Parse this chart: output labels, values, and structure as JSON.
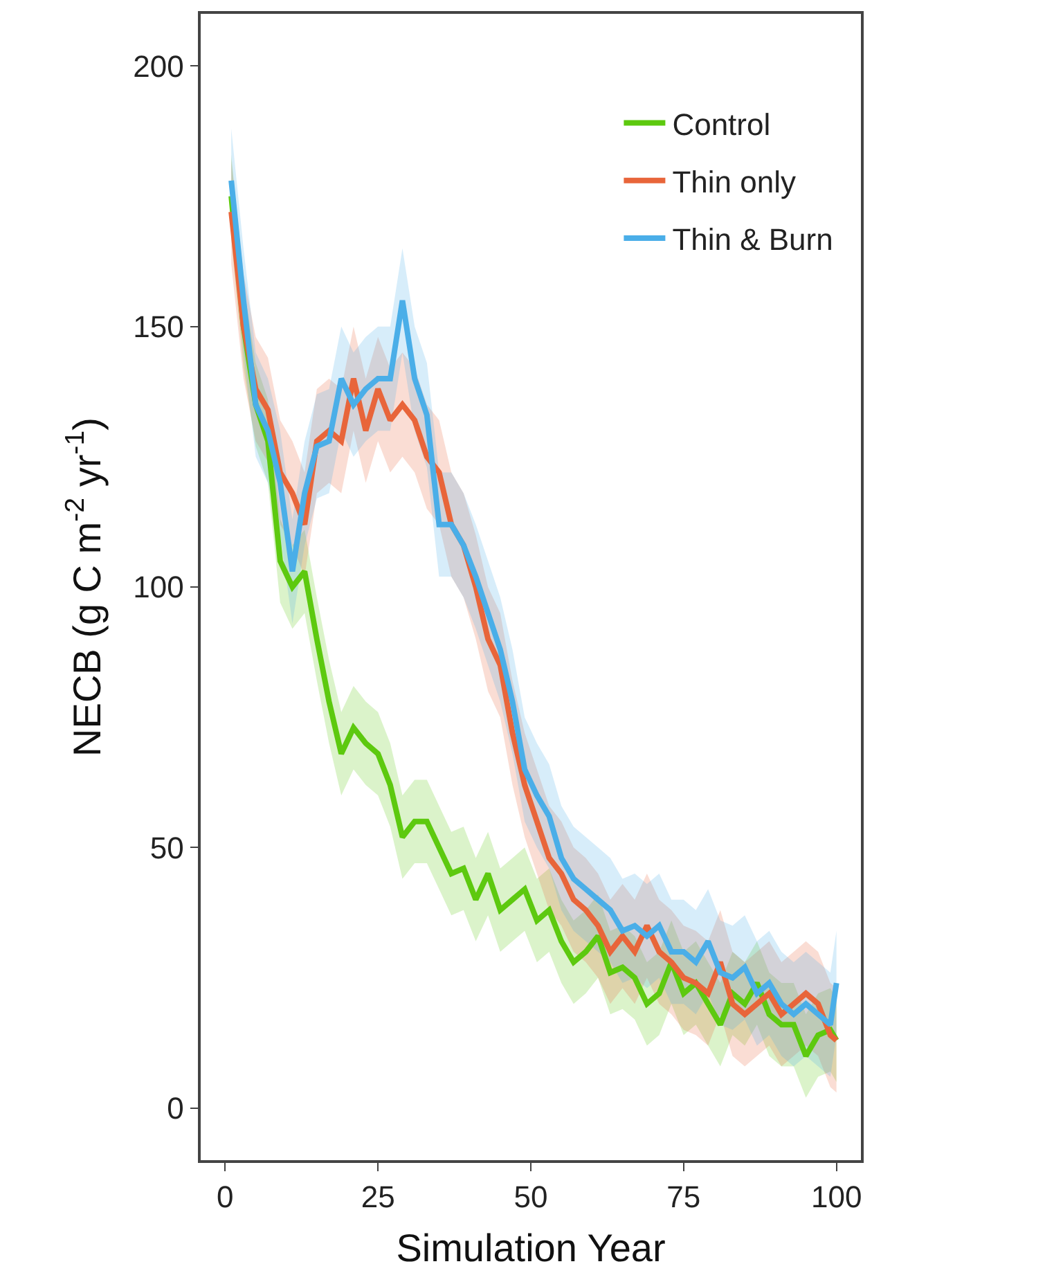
{
  "chart_data": {
    "type": "line",
    "xlabel": "Simulation Year",
    "ylabel": "NECB (g C m$^{-2}$ yr$^{-1}$)",
    "x": [
      1,
      3,
      5,
      7,
      9,
      11,
      13,
      15,
      17,
      19,
      21,
      23,
      25,
      27,
      29,
      31,
      33,
      35,
      37,
      39,
      41,
      43,
      45,
      47,
      49,
      51,
      53,
      55,
      57,
      59,
      61,
      63,
      65,
      67,
      69,
      71,
      73,
      75,
      77,
      79,
      81,
      83,
      85,
      87,
      89,
      91,
      93,
      95,
      97,
      99,
      100
    ],
    "xlim": [
      -4,
      104
    ],
    "ylim": [
      -10,
      210
    ],
    "xticks": [
      0,
      25,
      50,
      75,
      100
    ],
    "yticks": [
      0,
      50,
      100,
      150,
      200
    ],
    "legend": "top right",
    "marker": "none",
    "line_style": "solid",
    "series": [
      {
        "name": "Control",
        "color": "#5dc90f",
        "values": [
          175,
          150,
          135,
          128,
          105,
          100,
          103,
          90,
          78,
          68,
          73,
          70,
          68,
          62,
          52,
          55,
          55,
          50,
          45,
          46,
          40,
          45,
          38,
          40,
          42,
          36,
          38,
          32,
          28,
          30,
          33,
          26,
          27,
          25,
          20,
          22,
          28,
          22,
          24,
          20,
          16,
          22,
          20,
          24,
          18,
          16,
          16,
          10,
          14,
          15,
          13
        ],
        "lower": [
          167,
          142,
          127,
          120,
          97,
          92,
          95,
          82,
          70,
          60,
          65,
          62,
          60,
          54,
          44,
          47,
          47,
          42,
          37,
          38,
          32,
          37,
          30,
          32,
          34,
          28,
          30,
          24,
          20,
          22,
          25,
          18,
          19,
          17,
          12,
          14,
          20,
          14,
          16,
          12,
          8,
          14,
          12,
          16,
          10,
          8,
          8,
          2,
          6,
          7,
          5
        ],
        "upper": [
          183,
          158,
          143,
          136,
          113,
          108,
          111,
          98,
          86,
          76,
          81,
          78,
          76,
          70,
          60,
          63,
          63,
          58,
          53,
          54,
          48,
          53,
          46,
          48,
          50,
          44,
          46,
          40,
          36,
          38,
          41,
          34,
          35,
          33,
          28,
          30,
          36,
          30,
          32,
          28,
          24,
          30,
          28,
          32,
          26,
          24,
          24,
          18,
          22,
          23,
          21
        ]
      },
      {
        "name": "Thin only",
        "color": "#e8653a",
        "values": [
          172,
          150,
          138,
          134,
          122,
          118,
          112,
          128,
          130,
          128,
          140,
          130,
          138,
          132,
          135,
          132,
          125,
          122,
          112,
          108,
          100,
          90,
          85,
          72,
          62,
          55,
          48,
          45,
          40,
          38,
          35,
          30,
          33,
          30,
          35,
          30,
          28,
          25,
          24,
          22,
          28,
          20,
          18,
          20,
          22,
          18,
          20,
          22,
          20,
          14,
          13
        ],
        "lower": [
          162,
          140,
          128,
          124,
          112,
          108,
          102,
          118,
          120,
          118,
          130,
          120,
          128,
          122,
          125,
          122,
          115,
          112,
          102,
          98,
          90,
          80,
          75,
          62,
          52,
          45,
          38,
          35,
          30,
          28,
          25,
          20,
          23,
          20,
          25,
          20,
          18,
          15,
          14,
          12,
          18,
          10,
          8,
          10,
          12,
          8,
          10,
          12,
          10,
          4,
          3
        ],
        "upper": [
          182,
          160,
          148,
          144,
          132,
          128,
          122,
          138,
          140,
          138,
          150,
          140,
          148,
          142,
          145,
          142,
          135,
          132,
          122,
          118,
          110,
          100,
          95,
          82,
          72,
          65,
          58,
          55,
          50,
          48,
          45,
          40,
          43,
          40,
          45,
          40,
          38,
          35,
          34,
          32,
          38,
          30,
          28,
          30,
          32,
          28,
          30,
          32,
          30,
          24,
          23
        ]
      },
      {
        "name": "Thin & Burn",
        "color": "#4aaee8",
        "values": [
          178,
          155,
          135,
          130,
          120,
          103,
          118,
          127,
          128,
          140,
          135,
          138,
          140,
          140,
          155,
          140,
          133,
          112,
          112,
          108,
          102,
          95,
          88,
          78,
          65,
          60,
          56,
          48,
          44,
          42,
          40,
          38,
          34,
          35,
          33,
          35,
          30,
          30,
          28,
          32,
          26,
          25,
          27,
          22,
          24,
          20,
          18,
          20,
          18,
          16,
          24
        ],
        "lower": [
          168,
          145,
          125,
          120,
          110,
          93,
          108,
          117,
          118,
          130,
          125,
          128,
          130,
          130,
          145,
          130,
          123,
          102,
          102,
          98,
          92,
          85,
          78,
          68,
          55,
          50,
          46,
          38,
          34,
          32,
          30,
          28,
          24,
          25,
          23,
          25,
          20,
          20,
          18,
          22,
          16,
          15,
          17,
          12,
          14,
          10,
          8,
          10,
          8,
          6,
          14
        ],
        "upper": [
          188,
          165,
          145,
          140,
          130,
          113,
          128,
          137,
          138,
          150,
          145,
          148,
          150,
          150,
          165,
          150,
          143,
          122,
          122,
          118,
          112,
          105,
          98,
          88,
          75,
          70,
          66,
          58,
          54,
          52,
          50,
          48,
          44,
          45,
          43,
          45,
          40,
          40,
          38,
          42,
          36,
          35,
          37,
          32,
          34,
          30,
          28,
          30,
          28,
          26,
          34
        ]
      }
    ]
  }
}
